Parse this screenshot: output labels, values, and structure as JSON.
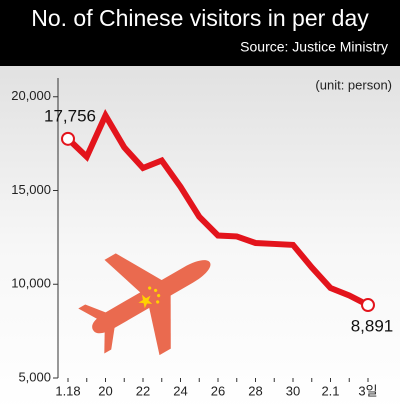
{
  "chart_data": {
    "type": "line",
    "title": "No. of Chinese visitors in per day",
    "subtitle": "Source: Justice Ministry",
    "unit_note": "(unit: person)",
    "categories": [
      "1.18",
      null,
      "20",
      null,
      "22",
      null,
      "24",
      null,
      "26",
      null,
      "28",
      null,
      "30",
      null,
      "2.1",
      null,
      "3일"
    ],
    "values": [
      17756,
      16800,
      19000,
      17300,
      16200,
      16600,
      15200,
      13600,
      12600,
      12550,
      12200,
      12150,
      12100,
      10900,
      9800,
      9400,
      8891
    ],
    "value_labels": [
      "17,756",
      null,
      null,
      null,
      null,
      null,
      null,
      null,
      null,
      null,
      null,
      null,
      null,
      null,
      null,
      null,
      "8,891"
    ],
    "color": "#e3141c",
    "ylim": [
      5000,
      21000
    ],
    "yticks": [
      {
        "value": 5000,
        "label": "5,000"
      },
      {
        "value": 10000,
        "label": "10,000"
      },
      {
        "value": 15000,
        "label": "15,000"
      },
      {
        "value": 20000,
        "label": "20,000"
      }
    ],
    "grid": false
  }
}
